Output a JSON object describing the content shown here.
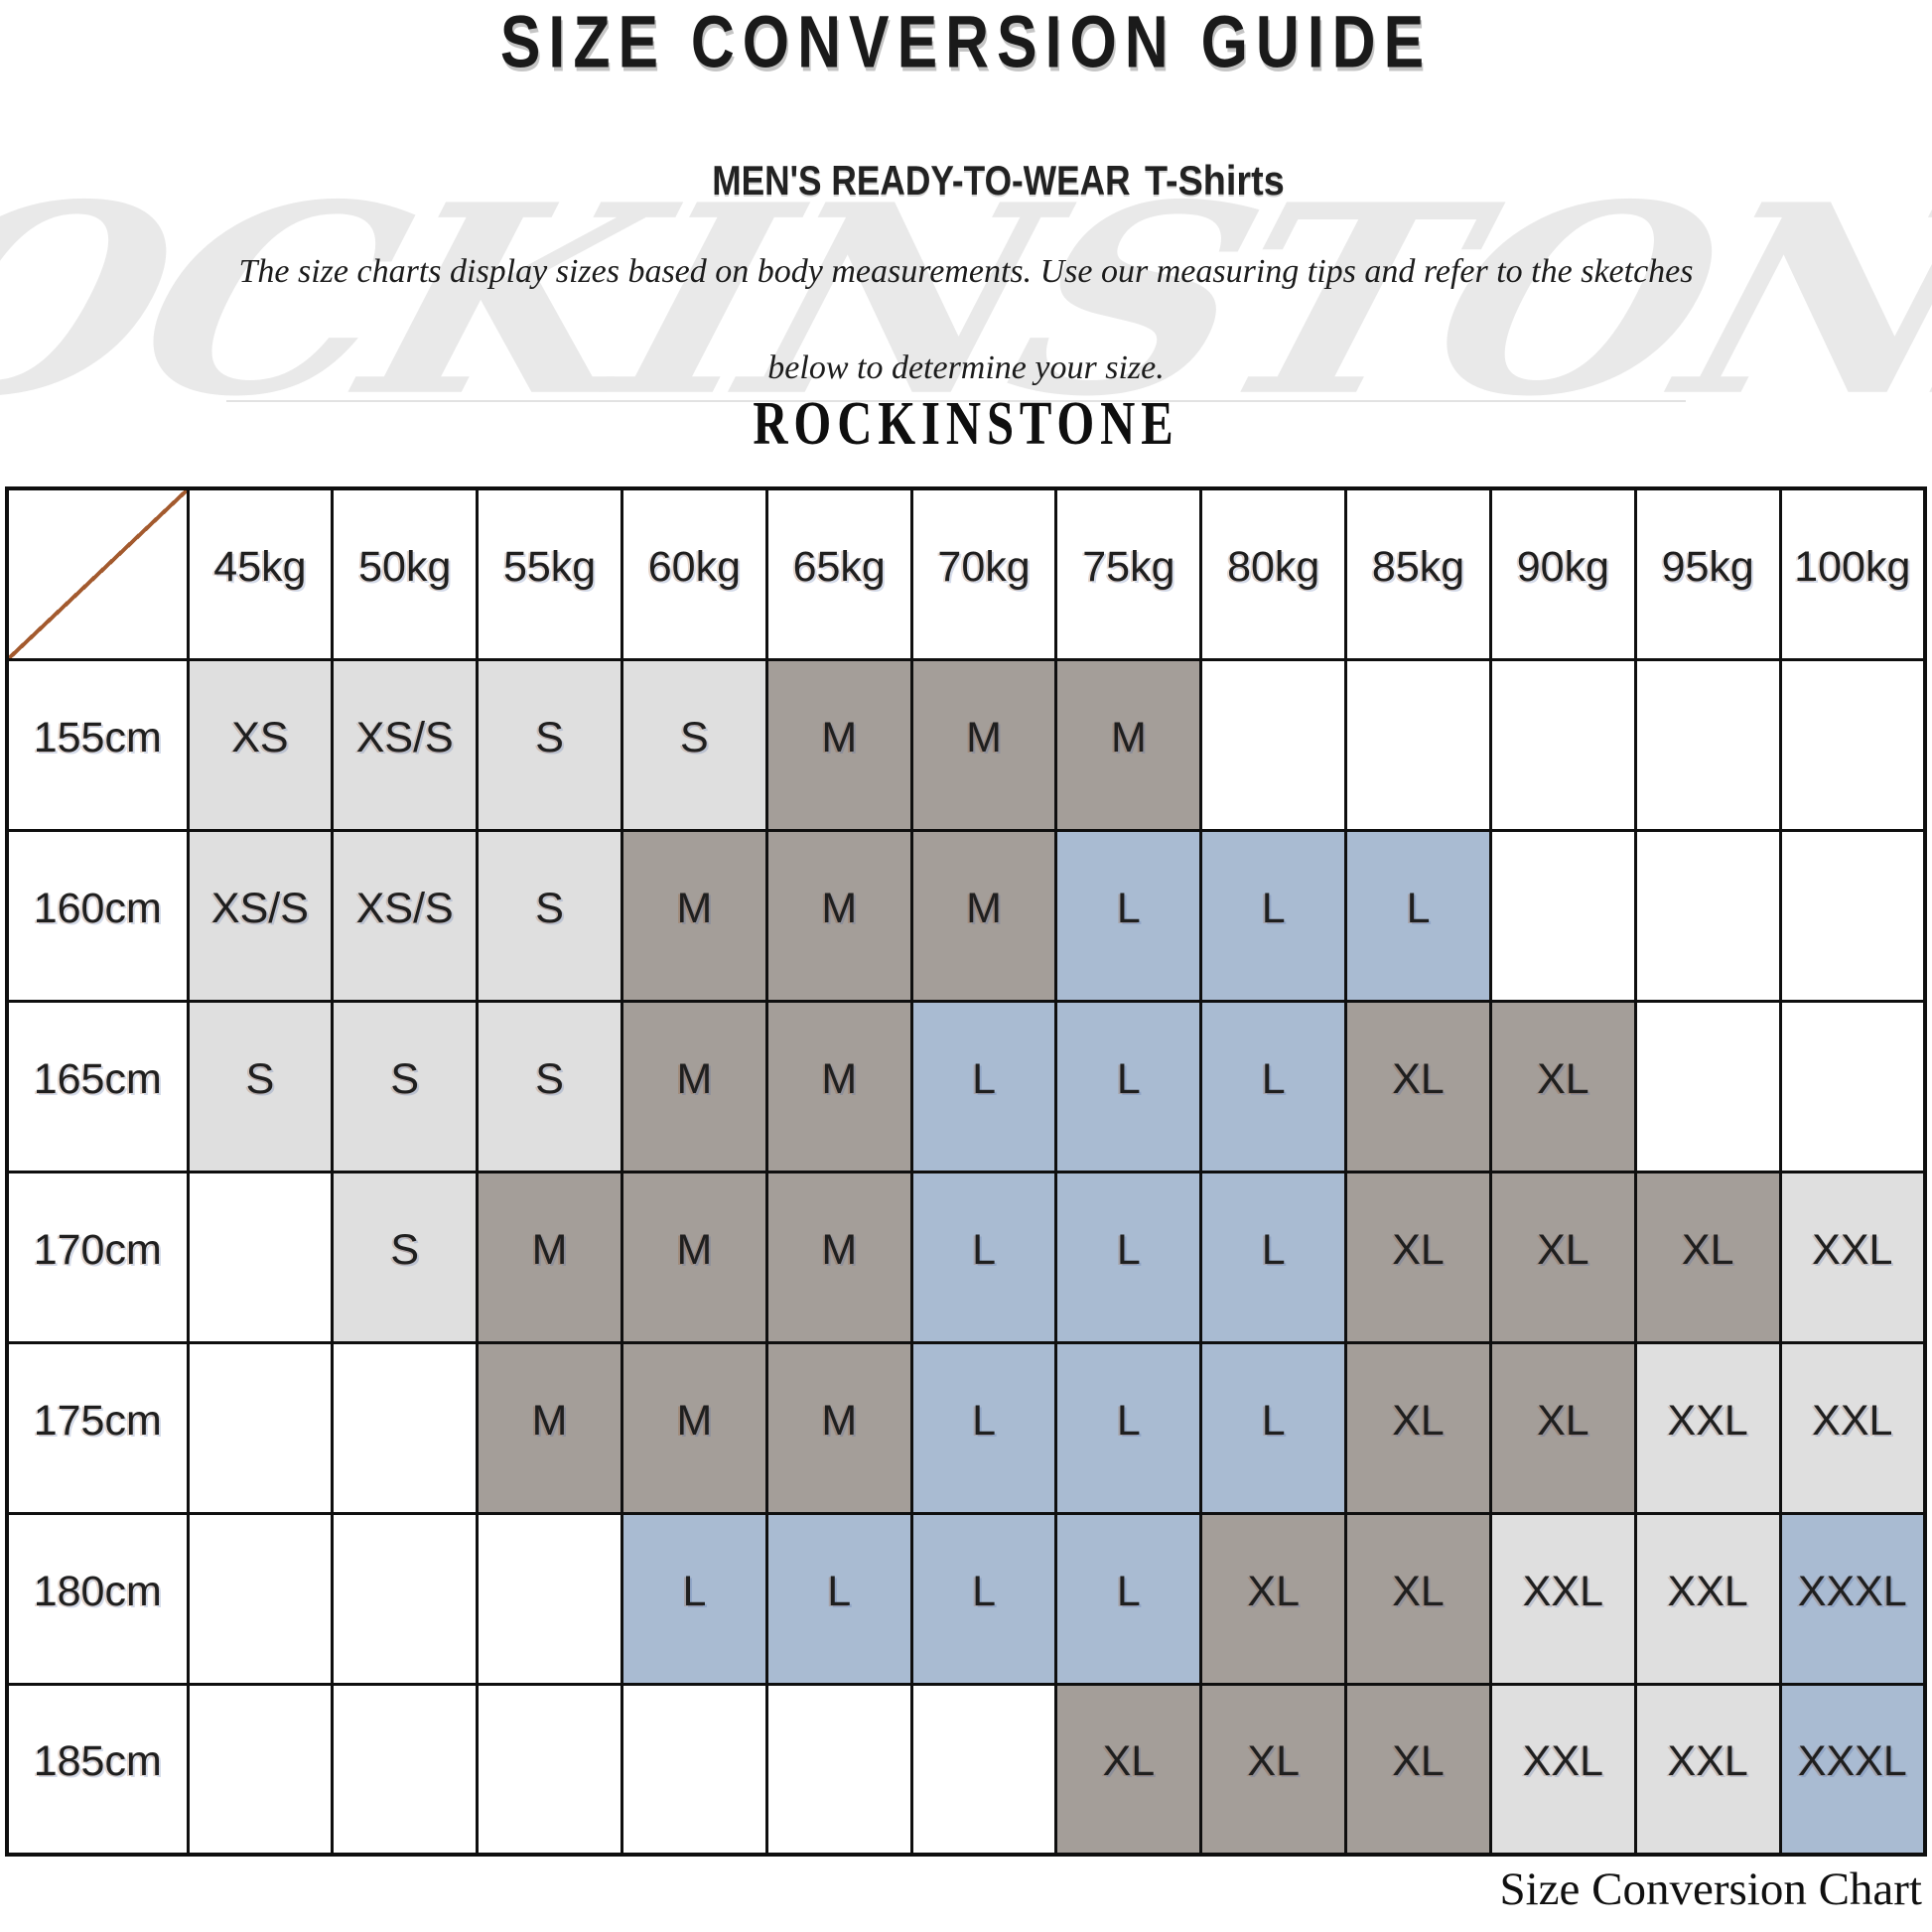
{
  "page": {
    "title": "SIZE CONVERSION GUIDE",
    "subtitle_main": "MEN'S READY-TO-WEAR",
    "subtitle_sub": "T-Shirts",
    "description_line1": "The size charts display sizes based on body measurements. Use our measuring tips and refer to the sketches",
    "description_line2": "below to determine your size.",
    "brand": "ROCKINSTONE",
    "watermark": "ROCKINSTONE",
    "caption": "Size Conversion Chart"
  },
  "colors": {
    "shade_light": "#dfdfdf",
    "shade_taupe": "#a49e99",
    "shade_blue": "#a9bbd2",
    "border": "#0f0f0f",
    "diagonal": "#a35a2e",
    "watermark": "#e9e9e9"
  },
  "size_table": {
    "corner_label": "",
    "weight_headers": [
      "45kg",
      "50kg",
      "55kg",
      "60kg",
      "65kg",
      "70kg",
      "75kg",
      "80kg",
      "85kg",
      "90kg",
      "95kg",
      "100kg"
    ],
    "rows": [
      {
        "height": "155cm",
        "cells": [
          {
            "size": "XS",
            "shade": "light"
          },
          {
            "size": "XS/S",
            "shade": "light"
          },
          {
            "size": "S",
            "shade": "light"
          },
          {
            "size": "S",
            "shade": "light"
          },
          {
            "size": "M",
            "shade": "taupe"
          },
          {
            "size": "M",
            "shade": "taupe"
          },
          {
            "size": "M",
            "shade": "taupe"
          },
          {
            "size": "",
            "shade": "none"
          },
          {
            "size": "",
            "shade": "none"
          },
          {
            "size": "",
            "shade": "none"
          },
          {
            "size": "",
            "shade": "none"
          },
          {
            "size": "",
            "shade": "none"
          }
        ]
      },
      {
        "height": "160cm",
        "cells": [
          {
            "size": "XS/S",
            "shade": "light"
          },
          {
            "size": "XS/S",
            "shade": "light"
          },
          {
            "size": "S",
            "shade": "light"
          },
          {
            "size": "M",
            "shade": "taupe"
          },
          {
            "size": "M",
            "shade": "taupe"
          },
          {
            "size": "M",
            "shade": "taupe"
          },
          {
            "size": "L",
            "shade": "blue"
          },
          {
            "size": "L",
            "shade": "blue"
          },
          {
            "size": "L",
            "shade": "blue"
          },
          {
            "size": "",
            "shade": "none"
          },
          {
            "size": "",
            "shade": "none"
          },
          {
            "size": "",
            "shade": "none"
          }
        ]
      },
      {
        "height": "165cm",
        "cells": [
          {
            "size": "S",
            "shade": "light"
          },
          {
            "size": "S",
            "shade": "light"
          },
          {
            "size": "S",
            "shade": "light"
          },
          {
            "size": "M",
            "shade": "taupe"
          },
          {
            "size": "M",
            "shade": "taupe"
          },
          {
            "size": "L",
            "shade": "blue"
          },
          {
            "size": "L",
            "shade": "blue"
          },
          {
            "size": "L",
            "shade": "blue"
          },
          {
            "size": "XL",
            "shade": "taupe"
          },
          {
            "size": "XL",
            "shade": "taupe"
          },
          {
            "size": "",
            "shade": "none"
          },
          {
            "size": "",
            "shade": "none"
          }
        ]
      },
      {
        "height": "170cm",
        "cells": [
          {
            "size": "",
            "shade": "none"
          },
          {
            "size": "S",
            "shade": "light"
          },
          {
            "size": "M",
            "shade": "taupe"
          },
          {
            "size": "M",
            "shade": "taupe"
          },
          {
            "size": "M",
            "shade": "taupe"
          },
          {
            "size": "L",
            "shade": "blue"
          },
          {
            "size": "L",
            "shade": "blue"
          },
          {
            "size": "L",
            "shade": "blue"
          },
          {
            "size": "XL",
            "shade": "taupe"
          },
          {
            "size": "XL",
            "shade": "taupe"
          },
          {
            "size": "XL",
            "shade": "taupe"
          },
          {
            "size": "XXL",
            "shade": "light"
          }
        ]
      },
      {
        "height": "175cm",
        "cells": [
          {
            "size": "",
            "shade": "none"
          },
          {
            "size": "",
            "shade": "none"
          },
          {
            "size": "M",
            "shade": "taupe"
          },
          {
            "size": "M",
            "shade": "taupe"
          },
          {
            "size": "M",
            "shade": "taupe"
          },
          {
            "size": "L",
            "shade": "blue"
          },
          {
            "size": "L",
            "shade": "blue"
          },
          {
            "size": "L",
            "shade": "blue"
          },
          {
            "size": "XL",
            "shade": "taupe"
          },
          {
            "size": "XL",
            "shade": "taupe"
          },
          {
            "size": "XXL",
            "shade": "light"
          },
          {
            "size": "XXL",
            "shade": "light"
          }
        ]
      },
      {
        "height": "180cm",
        "cells": [
          {
            "size": "",
            "shade": "none"
          },
          {
            "size": "",
            "shade": "none"
          },
          {
            "size": "",
            "shade": "none"
          },
          {
            "size": "L",
            "shade": "blue"
          },
          {
            "size": "L",
            "shade": "blue"
          },
          {
            "size": "L",
            "shade": "blue"
          },
          {
            "size": "L",
            "shade": "blue"
          },
          {
            "size": "XL",
            "shade": "taupe"
          },
          {
            "size": "XL",
            "shade": "taupe"
          },
          {
            "size": "XXL",
            "shade": "light"
          },
          {
            "size": "XXL",
            "shade": "light"
          },
          {
            "size": "XXXL",
            "shade": "blue"
          }
        ]
      },
      {
        "height": "185cm",
        "cells": [
          {
            "size": "",
            "shade": "none"
          },
          {
            "size": "",
            "shade": "none"
          },
          {
            "size": "",
            "shade": "none"
          },
          {
            "size": "",
            "shade": "none"
          },
          {
            "size": "",
            "shade": "none"
          },
          {
            "size": "",
            "shade": "none"
          },
          {
            "size": "XL",
            "shade": "taupe"
          },
          {
            "size": "XL",
            "shade": "taupe"
          },
          {
            "size": "XL",
            "shade": "taupe"
          },
          {
            "size": "XXL",
            "shade": "light"
          },
          {
            "size": "XXL",
            "shade": "light"
          },
          {
            "size": "XXXL",
            "shade": "blue"
          }
        ]
      }
    ]
  }
}
